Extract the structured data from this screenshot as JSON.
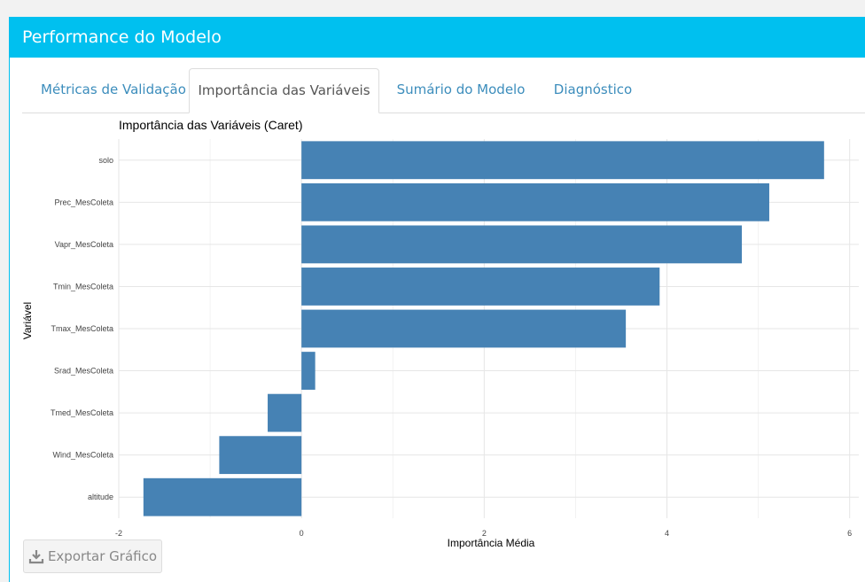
{
  "panel": {
    "title": "Performance do Modelo",
    "accent_color": "#00c0ef"
  },
  "tabs": [
    {
      "label": "Métricas de Validação",
      "active": false
    },
    {
      "label": "Importância das Variáveis",
      "active": true
    },
    {
      "label": "Sumário do Modelo",
      "active": false
    },
    {
      "label": "Diagnóstico",
      "active": false
    }
  ],
  "chart_data": {
    "type": "bar",
    "orientation": "horizontal",
    "title": "Importância das Variáveis (Caret)",
    "xlabel": "Importância Média",
    "ylabel": "Variável",
    "categories": [
      "solo",
      "Prec_MesColeta",
      "Vapr_MesColeta",
      "Tmin_MesColeta",
      "Tmax_MesColeta",
      "Srad_MesColeta",
      "Tmed_MesColeta",
      "Wind_MesColeta",
      "altitude"
    ],
    "values": [
      5.72,
      5.12,
      4.82,
      3.92,
      3.55,
      0.15,
      -0.37,
      -0.9,
      -1.73
    ],
    "xlim": [
      -2.0,
      6.1
    ],
    "xticks": [
      -2,
      0,
      2,
      4,
      6
    ],
    "bar_color": "#4682b4",
    "grid": true
  },
  "export": {
    "label": "Exportar Gráfico",
    "icon": "download-icon"
  }
}
